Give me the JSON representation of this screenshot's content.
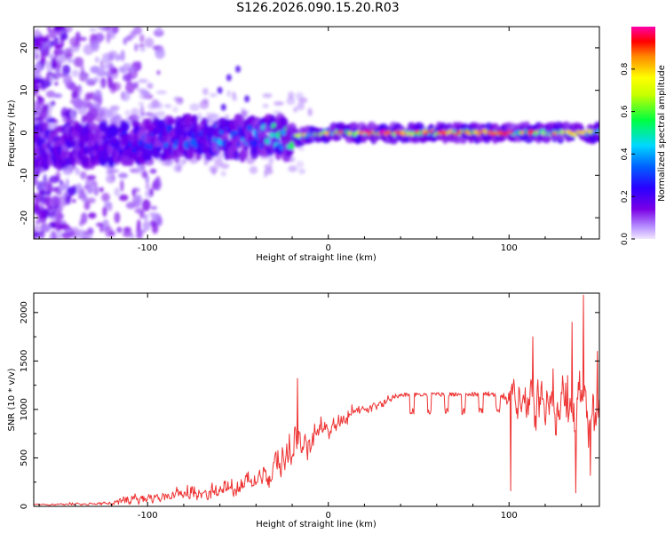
{
  "figure_title": "S126.2026.090.15.20.R03",
  "chart_data": [
    {
      "type": "heatmap",
      "title": "S126.2026.090.15.20.R03",
      "xlabel": "Height of straight line (km)",
      "ylabel": "Frequency (Hz)",
      "xlim": [
        -163,
        150
      ],
      "ylim": [
        -25,
        25
      ],
      "xticks": [
        -100,
        0,
        100
      ],
      "yticks": [
        -20,
        -10,
        0,
        10,
        20
      ],
      "colorbar": {
        "label": "Normalized spectral amplitude",
        "range": [
          0,
          1
        ],
        "ticks": [
          0.0,
          0.2,
          0.4,
          0.6,
          0.8
        ],
        "tick_labels": [
          "0.0",
          "0.2",
          "0.4",
          "0.6",
          "0.8"
        ],
        "colormap": [
          "#e8d4ff",
          "#7a00e6",
          "#0000ff",
          "#00e5ff",
          "#00ff00",
          "#ffff00",
          "#ff8800",
          "#ff0000",
          "#ff00aa"
        ]
      },
      "ridge_centre_hz": [
        {
          "x": -160,
          "y": -3
        },
        {
          "x": -120,
          "y": -3
        },
        {
          "x": -100,
          "y": -2
        },
        {
          "x": -80,
          "y": -1
        },
        {
          "x": -60,
          "y": -1
        },
        {
          "x": -40,
          "y": -1
        },
        {
          "x": -20,
          "y": -1
        },
        {
          "x": 0,
          "y": 0
        },
        {
          "x": 50,
          "y": 0
        },
        {
          "x": 100,
          "y": 0
        },
        {
          "x": 150,
          "y": 0
        }
      ],
      "ridge_strength": [
        {
          "x": -165,
          "a": 0.1
        },
        {
          "x": -100,
          "a": 0.3
        },
        {
          "x": -40,
          "a": 0.45
        },
        {
          "x": -20,
          "a": 0.6
        },
        {
          "x": 0,
          "a": 0.72
        },
        {
          "x": 20,
          "a": 0.88
        },
        {
          "x": 60,
          "a": 0.8
        },
        {
          "x": 100,
          "a": 0.82
        },
        {
          "x": 150,
          "a": 0.7
        }
      ]
    },
    {
      "type": "line",
      "xlabel": "Height of straight line (km)",
      "ylabel": "SNR (10 * v/v)",
      "xlim": [
        -163,
        150
      ],
      "ylim": [
        0,
        2200
      ],
      "xticks": [
        -100,
        0,
        100
      ],
      "yticks": [
        0,
        500,
        1000,
        1500,
        2000
      ],
      "series": [
        {
          "name": "SNR",
          "color": "#ee3333",
          "envelope": [
            {
              "x": -165,
              "base": 15,
              "noise": 15
            },
            {
              "x": -130,
              "base": 25,
              "noise": 25
            },
            {
              "x": -110,
              "base": 50,
              "noise": 80
            },
            {
              "x": -80,
              "base": 110,
              "noise": 140
            },
            {
              "x": -50,
              "base": 190,
              "noise": 190
            },
            {
              "x": -35,
              "base": 280,
              "noise": 230
            },
            {
              "x": -22,
              "base": 460,
              "noise": 380
            },
            {
              "x": -10,
              "base": 680,
              "noise": 300
            },
            {
              "x": 0,
              "base": 830,
              "noise": 200
            },
            {
              "x": 15,
              "base": 970,
              "noise": 120
            },
            {
              "x": 30,
              "base": 1070,
              "noise": 90
            },
            {
              "x": 40,
              "base": 1150,
              "noise": 40
            },
            {
              "x": 95,
              "base": 1160,
              "noise": 50
            },
            {
              "x": 105,
              "base": 1030,
              "noise": 350
            },
            {
              "x": 130,
              "base": 950,
              "noise": 600
            },
            {
              "x": 150,
              "base": 900,
              "noise": 600
            }
          ],
          "highlights": [
            {
              "x": -17,
              "y": 1320
            },
            {
              "x": 113,
              "y": 1750
            },
            {
              "x": 135,
              "y": 1900
            },
            {
              "x": 141,
              "y": 2180
            },
            {
              "x": 149,
              "y": 1600
            }
          ],
          "dips": [
            {
              "x": 101,
              "y": 160
            },
            {
              "x": 137,
              "y": 140
            },
            {
              "x": 145,
              "y": 320
            }
          ]
        }
      ]
    }
  ]
}
